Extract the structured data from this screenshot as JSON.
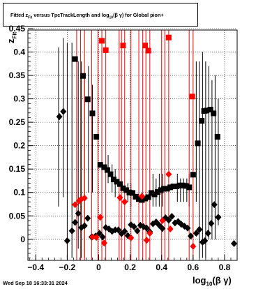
{
  "title": {
    "pre": "Fitted  z",
    "sub1": "Fit",
    "mid": "  versus TpcTrackLength and log",
    "sub2": "10",
    "post": "(β γ) for Global pion+"
  },
  "timestamp": "Wed Sep 18 16:33:31 2024",
  "axes": {
    "xlabel_main": "log",
    "xlabel_sub": "10",
    "xlabel_rest": "(β γ)",
    "ylabel_main": "z",
    "ylabel_sub": "Fit"
  },
  "colors": {
    "black_series": "#000000",
    "red_series": "#ff0000",
    "grid": "#000000"
  },
  "chart_data": {
    "type": "scatter",
    "xlim": [
      -0.45,
      0.88
    ],
    "ylim": [
      -0.045,
      0.447
    ],
    "x_ticks": [
      -0.4,
      -0.2,
      0,
      0.2,
      0.4,
      0.6,
      0.8
    ],
    "x_tick_labels": [
      "−0.4",
      "−0.2",
      "0",
      "0.2",
      "0.4",
      "0.6",
      "0.8"
    ],
    "y_ticks": [
      0,
      0.05,
      0.1,
      0.15,
      0.2,
      0.25,
      0.3,
      0.35,
      0.4,
      0.45
    ],
    "y_tick_labels": [
      "0",
      "0.05",
      "0.1",
      "0.15",
      "0.2",
      "0.25",
      "0.3",
      "0.35",
      "0.4",
      "0.45"
    ],
    "grid": true,
    "series": [
      {
        "marker": "square",
        "color": "#000000",
        "points": [
          [
            -0.15,
            0.385
          ],
          [
            -0.1,
            0.349
          ],
          [
            -0.07,
            0.299
          ],
          [
            -0.04,
            0.269
          ],
          [
            -0.015,
            0.219
          ],
          [
            0.01,
            0.159
          ],
          [
            0.035,
            0.154
          ],
          [
            0.055,
            0.148
          ],
          [
            0.075,
            0.139
          ],
          [
            0.095,
            0.128
          ],
          [
            0.115,
            0.123
          ],
          [
            0.135,
            0.118
          ],
          [
            0.155,
            0.109
          ],
          [
            0.175,
            0.105
          ],
          [
            0.195,
            0.1
          ],
          [
            0.215,
            0.099
          ],
          [
            0.235,
            0.091
          ],
          [
            0.255,
            0.086
          ],
          [
            0.275,
            0.084
          ],
          [
            0.295,
            0.087
          ],
          [
            0.315,
            0.09
          ],
          [
            0.335,
            0.099
          ],
          [
            0.355,
            0.096
          ],
          [
            0.375,
            0.101
          ],
          [
            0.395,
            0.105
          ],
          [
            0.415,
            0.108
          ],
          [
            0.435,
            0.108
          ],
          [
            0.455,
            0.111
          ],
          [
            0.475,
            0.113
          ],
          [
            0.495,
            0.113
          ],
          [
            0.515,
            0.115
          ],
          [
            0.535,
            0.115
          ],
          [
            0.555,
            0.114
          ],
          [
            0.575,
            0.111
          ],
          [
            0.6,
            0.138
          ],
          [
            0.63,
            0.205
          ],
          [
            0.655,
            0.253
          ],
          [
            0.67,
            0.274
          ],
          [
            0.685,
            0.275
          ],
          [
            0.71,
            0.277
          ],
          [
            0.73,
            0.269
          ],
          [
            0.755,
            0.219
          ]
        ]
      },
      {
        "marker": "diamond",
        "color": "#000000",
        "points": [
          [
            -0.25,
            0.262
          ],
          [
            -0.225,
            0.273
          ],
          [
            -0.2,
            -0.003
          ],
          [
            -0.17,
            0.018
          ],
          [
            -0.15,
            0.036
          ],
          [
            -0.13,
            0.055
          ],
          [
            -0.11,
            0.025
          ],
          [
            -0.09,
            0.029
          ],
          [
            -0.07,
            0.045
          ],
          [
            -0.045,
            0.005
          ],
          [
            -0.02,
            0.007
          ],
          [
            0.005,
            0.013
          ],
          [
            0.025,
            0.005
          ],
          [
            0.045,
            0.025
          ],
          [
            0.065,
            0.022
          ],
          [
            0.085,
            0.017
          ],
          [
            0.105,
            0.02
          ],
          [
            0.125,
            0.02
          ],
          [
            0.145,
            0.012
          ],
          [
            0.165,
            0.017
          ],
          [
            0.185,
            0.008
          ],
          [
            0.205,
            0.031
          ],
          [
            0.225,
            0.027
          ],
          [
            0.245,
            0.018
          ],
          [
            0.265,
            0.03
          ],
          [
            0.285,
            0.027
          ],
          [
            0.305,
            0.024
          ],
          [
            0.325,
            0.016
          ],
          [
            0.345,
            0.033
          ],
          [
            0.365,
            0.037
          ],
          [
            0.385,
            0.03
          ],
          [
            0.405,
            0.023
          ],
          [
            0.425,
            0.046
          ],
          [
            0.445,
            0.041
          ],
          [
            0.465,
            0.049
          ],
          [
            0.485,
            0.035
          ],
          [
            0.505,
            0.038
          ],
          [
            0.525,
            0.032
          ],
          [
            0.545,
            0.028
          ],
          [
            0.565,
            0.024
          ],
          [
            0.585,
            0.007
          ],
          [
            0.62,
            0.013
          ],
          [
            0.64,
            0.021
          ],
          [
            0.66,
            -0.006
          ],
          [
            0.675,
            -0.003
          ],
          [
            0.695,
            0.013
          ],
          [
            0.715,
            0.034
          ],
          [
            0.735,
            0.074
          ],
          [
            0.76,
            0.047
          ],
          [
            0.86,
            -0.009
          ]
        ]
      },
      {
        "marker": "square",
        "color": "#ff0000",
        "points": [
          [
            0.02,
            0.424
          ],
          [
            0.045,
            0.404
          ],
          [
            0.155,
            0.414
          ],
          [
            0.295,
            0.414
          ],
          [
            0.315,
            0.403
          ],
          [
            0.445,
            0.431
          ],
          [
            0.595,
            0.305
          ]
        ]
      },
      {
        "marker": "diamond",
        "color": "#ff0000",
        "points": [
          [
            -0.15,
            0.074
          ],
          [
            -0.125,
            0.082
          ],
          [
            -0.11,
            0.086
          ],
          [
            -0.09,
            0.088
          ],
          [
            -0.04,
            0.005
          ],
          [
            -0.015,
            0.004
          ],
          [
            0.01,
            0.047
          ],
          [
            0.035,
            -0.008
          ],
          [
            0.135,
            0.089
          ],
          [
            0.165,
            0.08
          ],
          [
            0.205,
            0.003
          ],
          [
            0.275,
            0.092
          ],
          [
            0.305,
            -0.002
          ],
          [
            0.325,
            0.013
          ],
          [
            0.405,
            0.04
          ],
          [
            0.445,
            0.139
          ],
          [
            0.455,
            0.022
          ],
          [
            0.6,
            -0.015
          ]
        ]
      }
    ],
    "error_bars": {
      "black": [
        [
          -0.255,
          0.07,
          0.41
        ],
        [
          -0.225,
          0.09,
          0.43
        ],
        [
          -0.2,
          -0.04,
          0.42
        ],
        [
          -0.17,
          -0.04,
          0.42
        ],
        [
          -0.13,
          -0.02,
          0.38
        ],
        [
          -0.11,
          -0.04,
          0.38
        ],
        [
          -0.09,
          -0.04,
          0.35
        ],
        [
          -0.065,
          0.1,
          0.37
        ],
        [
          -0.04,
          0.1,
          0.33
        ],
        [
          0.06,
          0.12,
          0.18
        ],
        [
          0.085,
          0.1,
          0.16
        ],
        [
          0.105,
          0.09,
          0.15
        ],
        [
          0.185,
          0.08,
          0.12
        ],
        [
          0.205,
          0.07,
          0.12
        ],
        [
          0.345,
          0.07,
          0.14
        ],
        [
          0.365,
          0.07,
          0.13
        ],
        [
          0.385,
          0.07,
          0.14
        ],
        [
          0.405,
          0.07,
          0.14
        ],
        [
          0.5,
          0.08,
          0.14
        ],
        [
          0.52,
          0.08,
          0.13
        ],
        [
          0.54,
          0.08,
          0.13
        ],
        [
          0.56,
          0.08,
          0.13
        ],
        [
          0.575,
          0.07,
          0.14
        ],
        [
          0.62,
          0.08,
          0.38
        ],
        [
          0.64,
          -0.04,
          0.38
        ],
        [
          0.66,
          -0.04,
          0.4
        ],
        [
          0.68,
          -0.04,
          0.38
        ],
        [
          0.7,
          0.0,
          0.37
        ],
        [
          0.72,
          0.0,
          0.34
        ],
        [
          0.74,
          0.0,
          0.35
        ],
        [
          0.76,
          0.03,
          0.3
        ]
      ],
      "red": [
        [
          -0.14,
          -0.045,
          0.447
        ],
        [
          -0.115,
          -0.045,
          0.447
        ],
        [
          -0.09,
          -0.045,
          0.447
        ],
        [
          -0.045,
          -0.045,
          0.447
        ],
        [
          -0.005,
          -0.045,
          0.447
        ],
        [
          0.02,
          -0.045,
          0.447
        ],
        [
          0.045,
          -0.045,
          0.447
        ],
        [
          0.13,
          -0.045,
          0.447
        ],
        [
          0.145,
          -0.045,
          0.447
        ],
        [
          0.165,
          -0.045,
          0.447
        ],
        [
          0.205,
          -0.045,
          0.447
        ],
        [
          0.255,
          -0.045,
          0.447
        ],
        [
          0.28,
          -0.045,
          0.447
        ],
        [
          0.3,
          -0.045,
          0.447
        ],
        [
          0.325,
          -0.045,
          0.447
        ],
        [
          0.4,
          -0.045,
          0.447
        ],
        [
          0.42,
          -0.045,
          0.447
        ],
        [
          0.445,
          -0.045,
          0.447
        ],
        [
          0.575,
          -0.045,
          0.447
        ],
        [
          0.6,
          -0.045,
          0.447
        ]
      ]
    }
  }
}
